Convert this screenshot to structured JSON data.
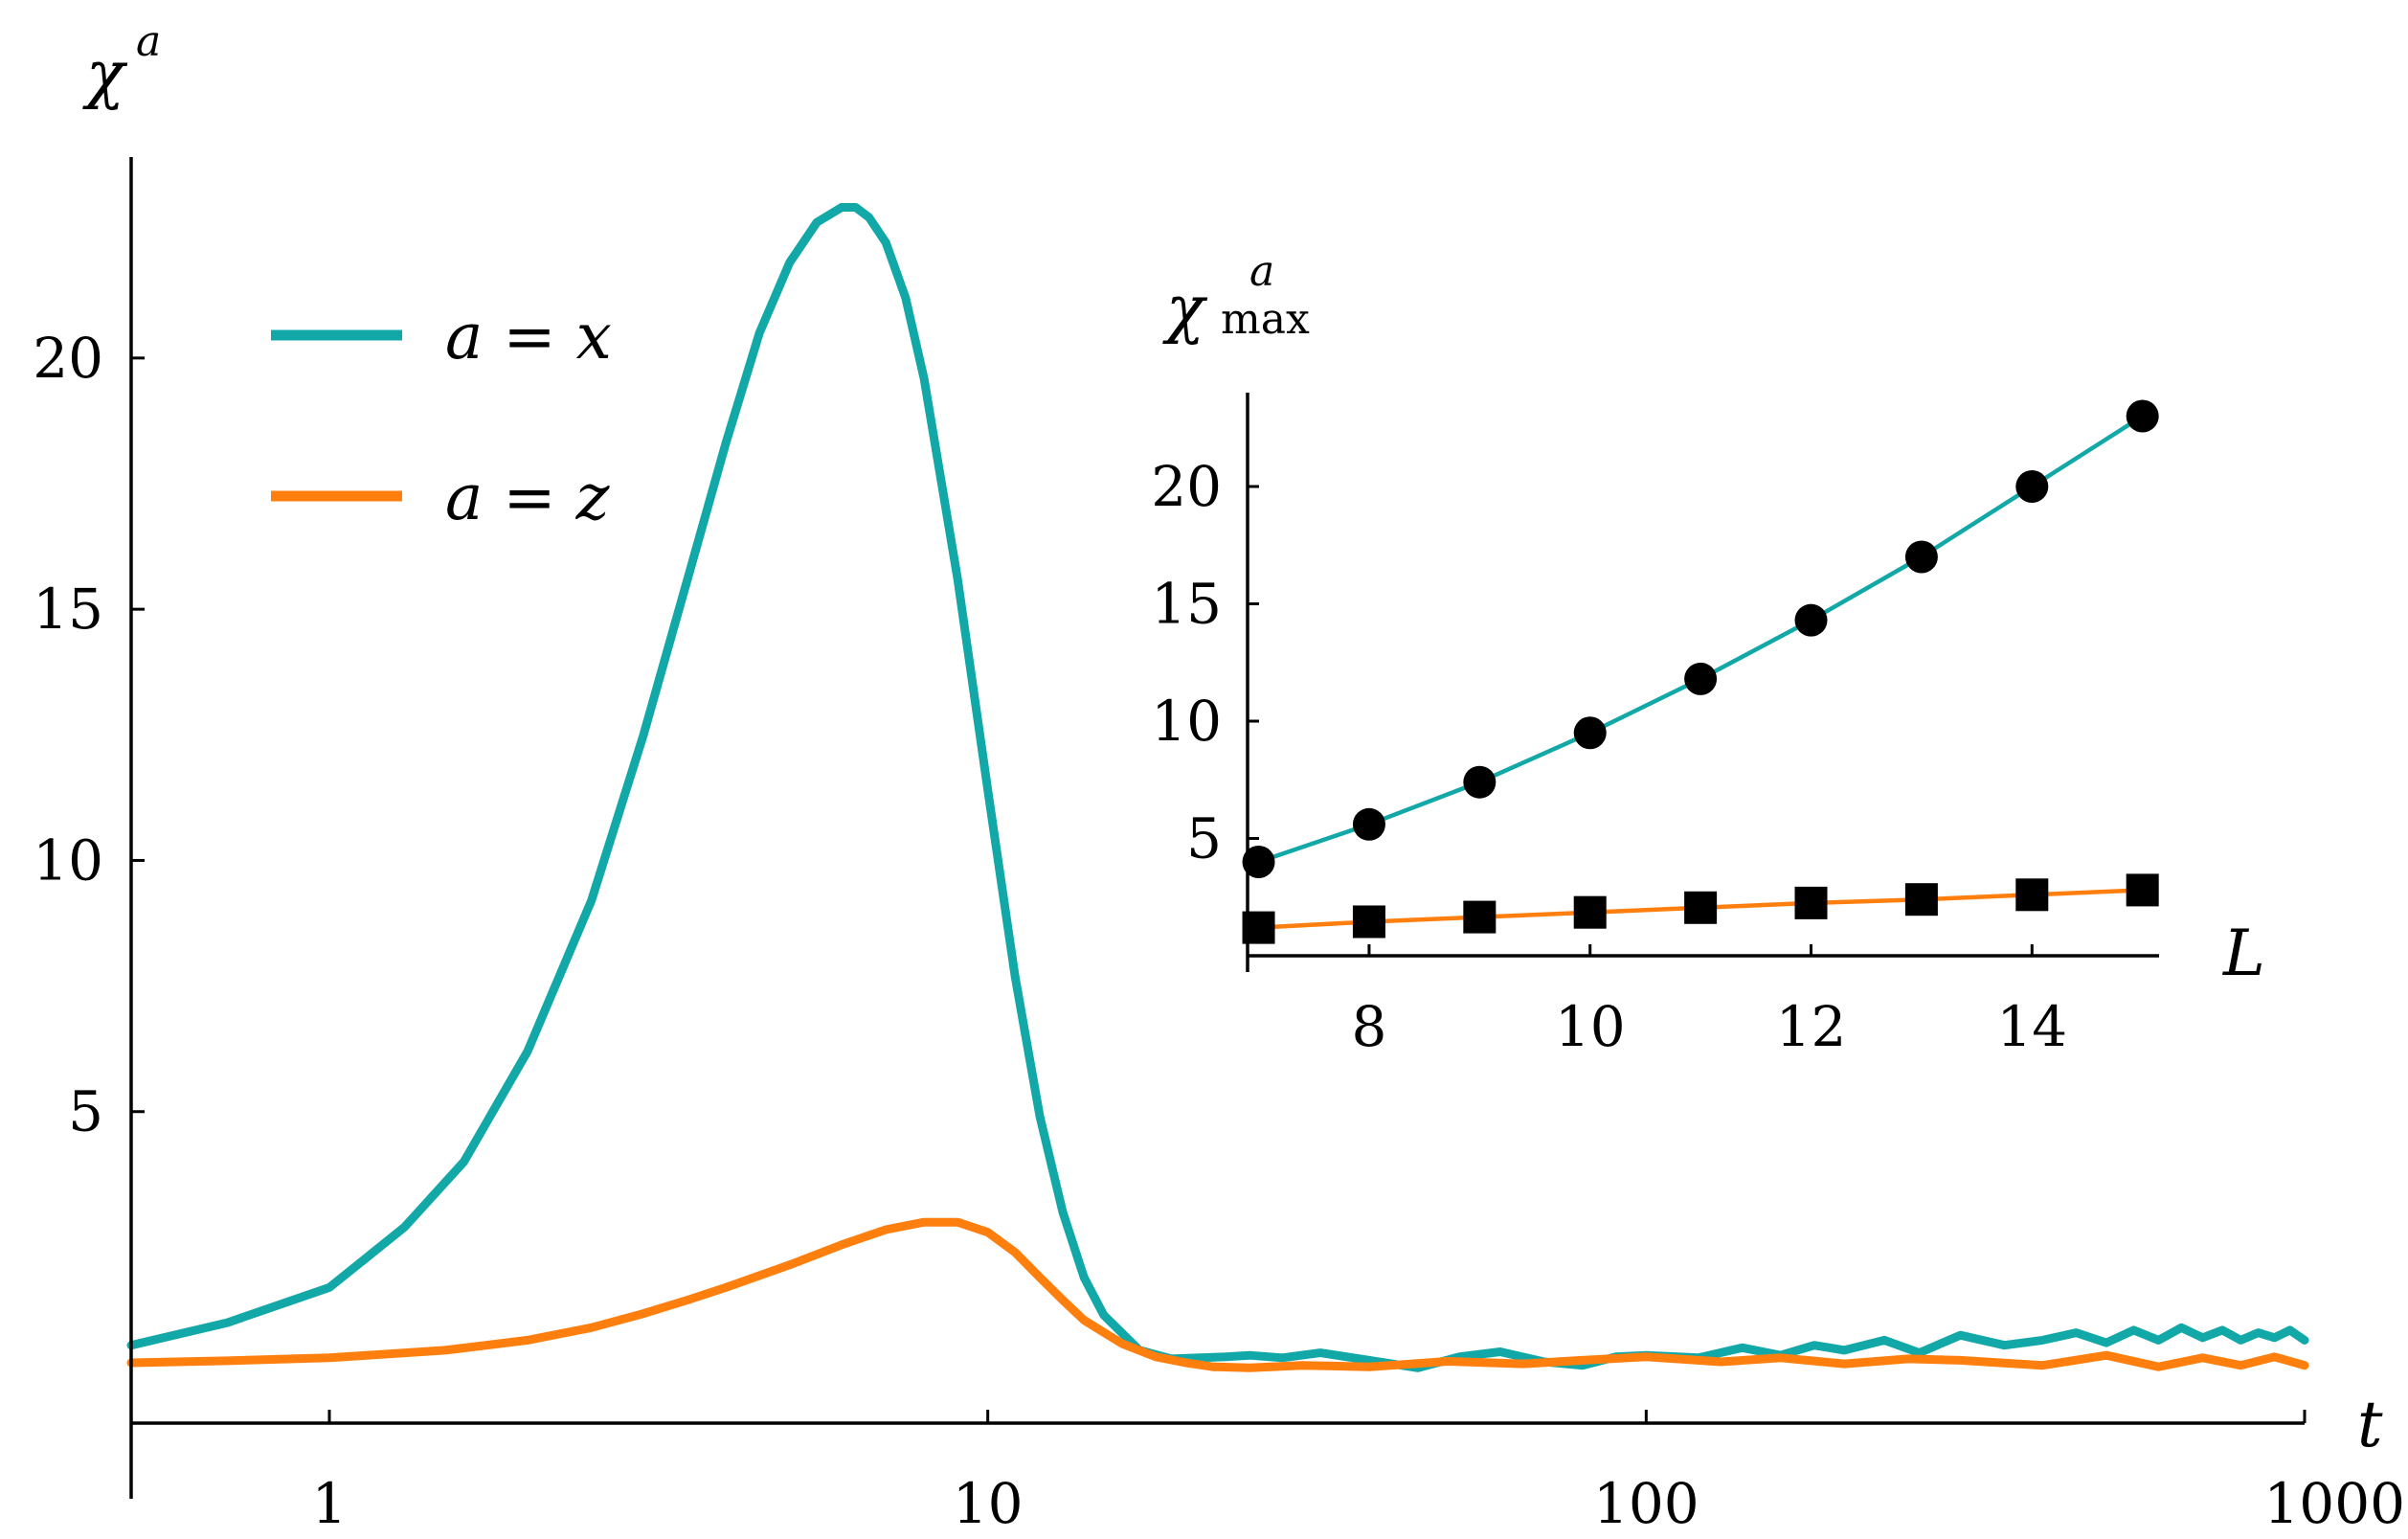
{
  "chart_data": [
    {
      "type": "line",
      "name": "main",
      "xscale": "log",
      "xlim": [
        0.5,
        1000
      ],
      "ylim": [
        -1.2,
        24
      ],
      "xlabel": "t",
      "ylabel": "χ",
      "ylabel_superscript": "a",
      "xticks": [
        {
          "value": 1,
          "label": "1"
        },
        {
          "value": 10,
          "label": "10"
        },
        {
          "value": 100,
          "label": "100"
        },
        {
          "value": 1000,
          "label": "1000"
        }
      ],
      "yticks": [
        {
          "value": 5,
          "label": "5"
        },
        {
          "value": 10,
          "label": "10"
        },
        {
          "value": 15,
          "label": "15"
        },
        {
          "value": 20,
          "label": "20"
        }
      ],
      "legend_position": "top-left",
      "series": [
        {
          "name": "a = x",
          "color": "#13a8a8",
          "x": [
            0.5,
            0.7,
            1,
            1.3,
            1.6,
            2,
            2.5,
            3,
            3.5,
            4,
            4.5,
            5,
            5.5,
            6,
            6.3,
            6.6,
            7,
            7.5,
            8,
            9,
            10,
            11,
            12,
            13,
            14,
            15,
            17,
            19,
            21,
            23,
            25,
            28,
            32,
            38,
            45,
            52,
            60,
            70,
            80,
            90,
            100,
            120,
            140,
            160,
            180,
            200,
            230,
            260,
            300,
            350,
            400,
            450,
            500,
            550,
            600,
            650,
            700,
            750,
            800,
            850,
            900,
            950,
            1000
          ],
          "values": [
            0.35,
            0.8,
            1.5,
            2.7,
            4.0,
            6.2,
            9.2,
            12.5,
            15.6,
            18.3,
            20.5,
            21.9,
            22.7,
            23.0,
            23.0,
            22.8,
            22.3,
            21.2,
            19.6,
            15.6,
            11.4,
            7.7,
            4.9,
            3.0,
            1.7,
            0.95,
            0.25,
            0.08,
            0.1,
            0.12,
            0.15,
            0.1,
            0.2,
            0.05,
            -0.1,
            0.12,
            0.22,
            0.02,
            -0.05,
            0.12,
            0.15,
            0.1,
            0.3,
            0.15,
            0.35,
            0.25,
            0.45,
            0.2,
            0.55,
            0.35,
            0.45,
            0.6,
            0.4,
            0.65,
            0.45,
            0.7,
            0.5,
            0.65,
            0.45,
            0.6,
            0.5,
            0.65,
            0.45
          ]
        },
        {
          "name": "a = z",
          "color": "#ff7f0e",
          "x": [
            0.5,
            0.7,
            1,
            1.5,
            2,
            2.5,
            3,
            3.5,
            4,
            5,
            6,
            7,
            8,
            9,
            10,
            11,
            12,
            13,
            14,
            16,
            18,
            20,
            22,
            25,
            30,
            38,
            50,
            65,
            80,
            100,
            130,
            160,
            200,
            250,
            300,
            400,
            500,
            600,
            700,
            800,
            900,
            1000
          ],
          "values": [
            0.0,
            0.04,
            0.1,
            0.25,
            0.45,
            0.7,
            0.98,
            1.25,
            1.5,
            1.95,
            2.35,
            2.65,
            2.8,
            2.8,
            2.6,
            2.2,
            1.7,
            1.25,
            0.85,
            0.38,
            0.12,
            0.0,
            -0.08,
            -0.1,
            -0.05,
            -0.08,
            0.03,
            -0.02,
            0.05,
            0.12,
            0.02,
            0.1,
            -0.02,
            0.08,
            0.05,
            -0.05,
            0.15,
            -0.08,
            0.1,
            -0.05,
            0.12,
            -0.05
          ]
        }
      ]
    },
    {
      "type": "scatter",
      "name": "inset",
      "xlim": [
        6.9,
        15.15
      ],
      "ylim": [
        0,
        24
      ],
      "xlabel": "L",
      "ylabel": "χ",
      "ylabel_superscript": "a",
      "ylabel_subscript": "max",
      "xticks": [
        {
          "value": 8,
          "label": "8"
        },
        {
          "value": 10,
          "label": "10"
        },
        {
          "value": 12,
          "label": "12"
        },
        {
          "value": 14,
          "label": "14"
        }
      ],
      "yticks": [
        {
          "value": 5,
          "label": "5"
        },
        {
          "value": 10,
          "label": "10"
        },
        {
          "value": 15,
          "label": "15"
        },
        {
          "value": 20,
          "label": "20"
        }
      ],
      "series": [
        {
          "name": "a = x",
          "marker": "circle",
          "marker_color": "#000000",
          "fit_color": "#13a8a8",
          "x": [
            7,
            8,
            9,
            10,
            11,
            12,
            13,
            14,
            15
          ],
          "values": [
            4.0,
            5.6,
            7.4,
            9.5,
            11.8,
            14.3,
            17.0,
            20.0,
            23.0
          ]
        },
        {
          "name": "a = z",
          "marker": "square",
          "marker_color": "#000000",
          "fit_color": "#ff7f0e",
          "x": [
            7,
            8,
            9,
            10,
            11,
            12,
            13,
            14,
            15
          ],
          "values": [
            1.2,
            1.45,
            1.65,
            1.85,
            2.05,
            2.25,
            2.4,
            2.6,
            2.8
          ]
        }
      ]
    }
  ]
}
